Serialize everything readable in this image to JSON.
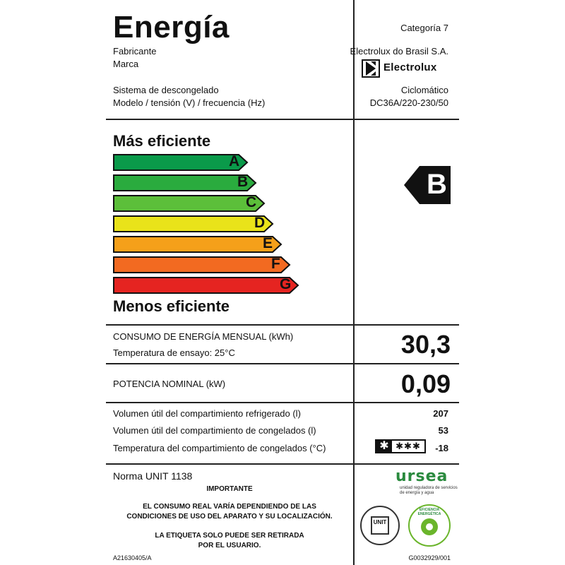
{
  "header": {
    "title": "Energía",
    "category": "Categoría 7",
    "manufacturer_label": "Fabricante",
    "manufacturer_value": "Electrolux do Brasil S.A.",
    "brand_label": "Marca",
    "brand_value": "Electrolux",
    "defrost_label": "Sistema de descongelado",
    "defrost_value": "Ciclomático",
    "model_label": "Modelo / tensión (V) / frecuencia (Hz)",
    "model_value": "DC36A/220-230/50"
  },
  "efficiency": {
    "top_label": "Más eficiente",
    "bottom_label": "Menos eficiente",
    "classes": [
      {
        "letter": "A",
        "color": "#0a9a4a"
      },
      {
        "letter": "B",
        "color": "#2aab3e"
      },
      {
        "letter": "C",
        "color": "#5cbf3a"
      },
      {
        "letter": "D",
        "color": "#e9e31a"
      },
      {
        "letter": "E",
        "color": "#f5a01a"
      },
      {
        "letter": "F",
        "color": "#f26a21"
      },
      {
        "letter": "G",
        "color": "#e52421"
      }
    ],
    "rating": "B"
  },
  "consumption": {
    "label": "CONSUMO DE ENERGÍA MENSUAL (kWh)",
    "sub_label": "Temperatura de ensayo: 25°C",
    "value": "30,3"
  },
  "power": {
    "label": "POTENCIA NOMINAL (kW)",
    "value": "0,09"
  },
  "volumes": {
    "refrigerated_label": "Volumen útil del compartimiento refrigerado (l)",
    "refrigerated_value": "207",
    "frozen_label": "Volumen útil del compartimiento de congelados (l)",
    "frozen_value": "53",
    "freezer_temp_label": "Temperatura del compartimiento de congelados (°C)",
    "freezer_temp_value": "-18",
    "star_rating": "✱✱✱"
  },
  "footer": {
    "norm": "Norma UNIT 1138",
    "important": "IMPORTANTE",
    "notice1_line1": "EL CONSUMO REAL VARÍA DEPENDIENDO DE LAS",
    "notice1_line2": "CONDICIONES DE USO DEL APARATO Y SU LOCALIZACIÓN.",
    "notice2_line1": "LA ETIQUETA SOLO PUEDE SER RETIRADA",
    "notice2_line2": "POR EL USUARIO.",
    "code_left": "A21630405/A",
    "code_right": "G0032929/001",
    "ursea_logo": "ursea",
    "ursea_sub1": "unidad reguladora de servicios",
    "ursea_sub2": "de energía y agua",
    "seal_unit": "UNIT",
    "seal_eff": "EFICIENCIA ENERGÉTICA"
  },
  "colors": {
    "rating_arrow": "#111111",
    "seal_green": "#6ab52b"
  }
}
